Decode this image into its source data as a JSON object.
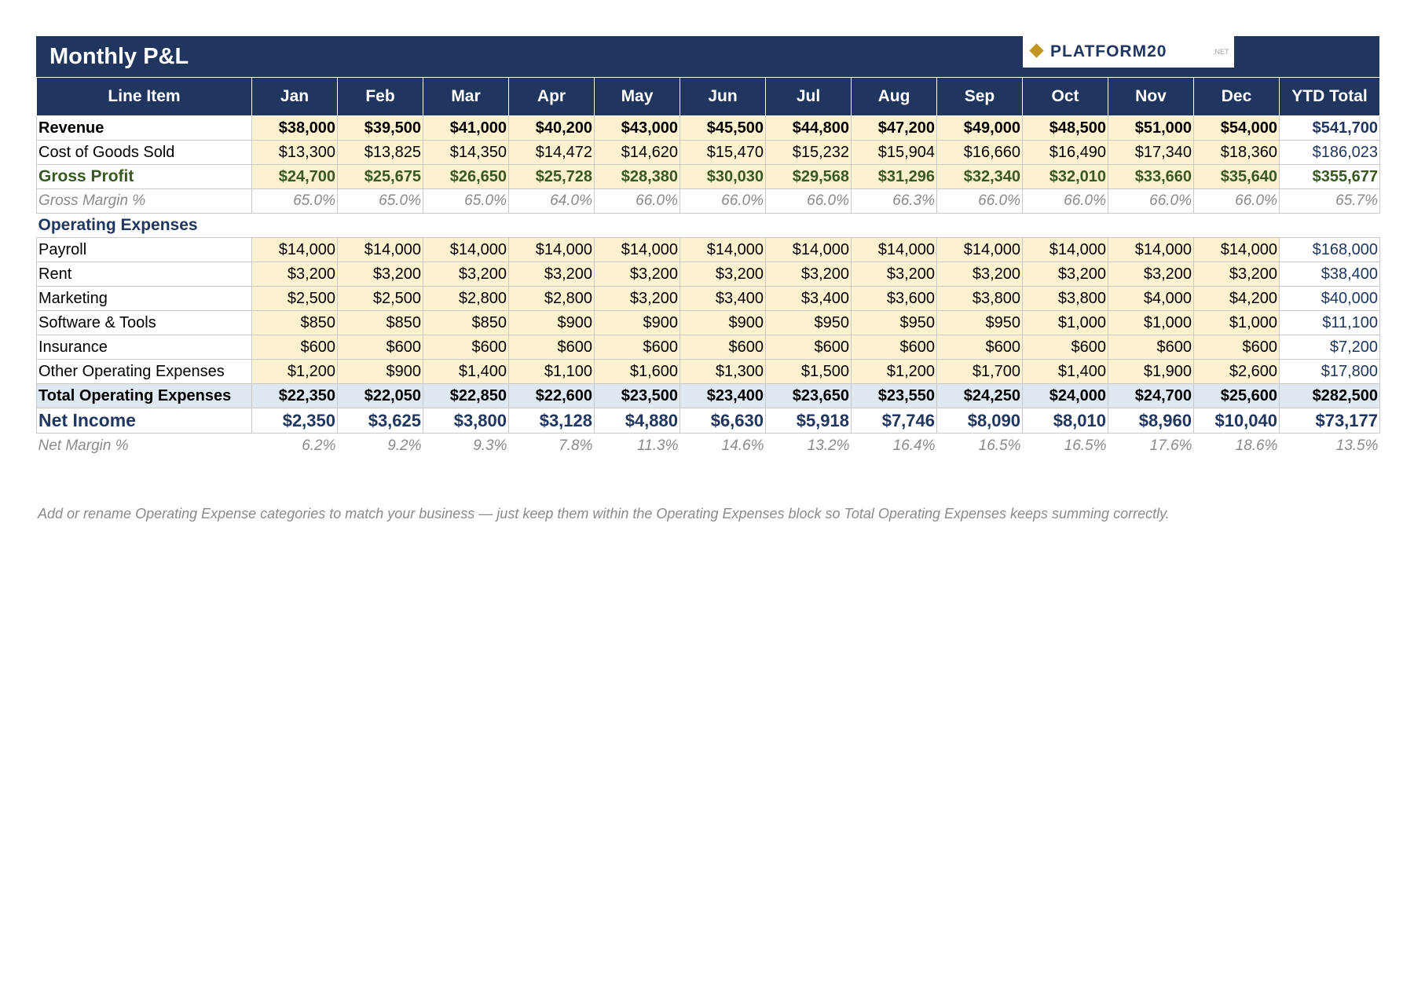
{
  "title": "Monthly P&L",
  "logo": {
    "word": "PLATFORM20",
    "suffix": ".NET"
  },
  "headers": [
    "Line Item",
    "Jan",
    "Feb",
    "Mar",
    "Apr",
    "May",
    "Jun",
    "Jul",
    "Aug",
    "Sep",
    "Oct",
    "Nov",
    "Dec",
    "YTD Total"
  ],
  "rows": {
    "revenue": {
      "label": "Revenue",
      "values": [
        "$38,000",
        "$39,500",
        "$41,000",
        "$40,200",
        "$43,000",
        "$45,500",
        "$44,800",
        "$47,200",
        "$49,000",
        "$48,500",
        "$51,000",
        "$54,000"
      ],
      "ytd": "$541,700"
    },
    "cogs": {
      "label": "Cost of Goods Sold",
      "values": [
        "$13,300",
        "$13,825",
        "$14,350",
        "$14,472",
        "$14,620",
        "$15,470",
        "$15,232",
        "$15,904",
        "$16,660",
        "$16,490",
        "$17,340",
        "$18,360"
      ],
      "ytd": "$186,023"
    },
    "gross_profit": {
      "label": "Gross Profit",
      "values": [
        "$24,700",
        "$25,675",
        "$26,650",
        "$25,728",
        "$28,380",
        "$30,030",
        "$29,568",
        "$31,296",
        "$32,340",
        "$32,010",
        "$33,660",
        "$35,640"
      ],
      "ytd": "$355,677"
    },
    "gross_margin": {
      "label": "Gross Margin %",
      "values": [
        "65.0%",
        "65.0%",
        "65.0%",
        "64.0%",
        "66.0%",
        "66.0%",
        "66.0%",
        "66.3%",
        "66.0%",
        "66.0%",
        "66.0%",
        "66.0%"
      ],
      "ytd": "65.7%"
    },
    "opex_section": {
      "label": "Operating Expenses"
    },
    "payroll": {
      "label": "Payroll",
      "values": [
        "$14,000",
        "$14,000",
        "$14,000",
        "$14,000",
        "$14,000",
        "$14,000",
        "$14,000",
        "$14,000",
        "$14,000",
        "$14,000",
        "$14,000",
        "$14,000"
      ],
      "ytd": "$168,000"
    },
    "rent": {
      "label": "Rent",
      "values": [
        "$3,200",
        "$3,200",
        "$3,200",
        "$3,200",
        "$3,200",
        "$3,200",
        "$3,200",
        "$3,200",
        "$3,200",
        "$3,200",
        "$3,200",
        "$3,200"
      ],
      "ytd": "$38,400"
    },
    "marketing": {
      "label": "Marketing",
      "values": [
        "$2,500",
        "$2,500",
        "$2,800",
        "$2,800",
        "$3,200",
        "$3,400",
        "$3,400",
        "$3,600",
        "$3,800",
        "$3,800",
        "$4,000",
        "$4,200"
      ],
      "ytd": "$40,000"
    },
    "software": {
      "label": "Software & Tools",
      "values": [
        "$850",
        "$850",
        "$850",
        "$900",
        "$900",
        "$900",
        "$950",
        "$950",
        "$950",
        "$1,000",
        "$1,000",
        "$1,000"
      ],
      "ytd": "$11,100"
    },
    "insurance": {
      "label": "Insurance",
      "values": [
        "$600",
        "$600",
        "$600",
        "$600",
        "$600",
        "$600",
        "$600",
        "$600",
        "$600",
        "$600",
        "$600",
        "$600"
      ],
      "ytd": "$7,200"
    },
    "other_opex": {
      "label": "Other Operating Expenses",
      "values": [
        "$1,200",
        "$900",
        "$1,400",
        "$1,100",
        "$1,600",
        "$1,300",
        "$1,500",
        "$1,200",
        "$1,700",
        "$1,400",
        "$1,900",
        "$2,600"
      ],
      "ytd": "$17,800"
    },
    "total_opex": {
      "label": "Total Operating Expenses",
      "values": [
        "$22,350",
        "$22,050",
        "$22,850",
        "$22,600",
        "$23,500",
        "$23,400",
        "$23,650",
        "$23,550",
        "$24,250",
        "$24,000",
        "$24,700",
        "$25,600"
      ],
      "ytd": "$282,500"
    },
    "net_income": {
      "label": "Net Income",
      "values": [
        "$2,350",
        "$3,625",
        "$3,800",
        "$3,128",
        "$4,880",
        "$6,630",
        "$5,918",
        "$7,746",
        "$8,090",
        "$8,010",
        "$8,960",
        "$10,040"
      ],
      "ytd": "$73,177"
    },
    "net_margin": {
      "label": "Net Margin %",
      "values": [
        "6.2%",
        "9.2%",
        "9.3%",
        "7.8%",
        "11.3%",
        "14.6%",
        "13.2%",
        "16.4%",
        "16.5%",
        "16.5%",
        "17.6%",
        "18.6%"
      ],
      "ytd": "13.5%"
    }
  },
  "note": "Add or rename Operating Expense categories to match your business — just keep them within the Operating Expenses block so Total Operating Expenses keeps summing correctly.",
  "colors": {
    "header": "#20365f",
    "input_fill": "#fef1d0",
    "total_fill": "#dfe7f0",
    "gross_profit": "#385723",
    "accent": "#c0961f"
  }
}
